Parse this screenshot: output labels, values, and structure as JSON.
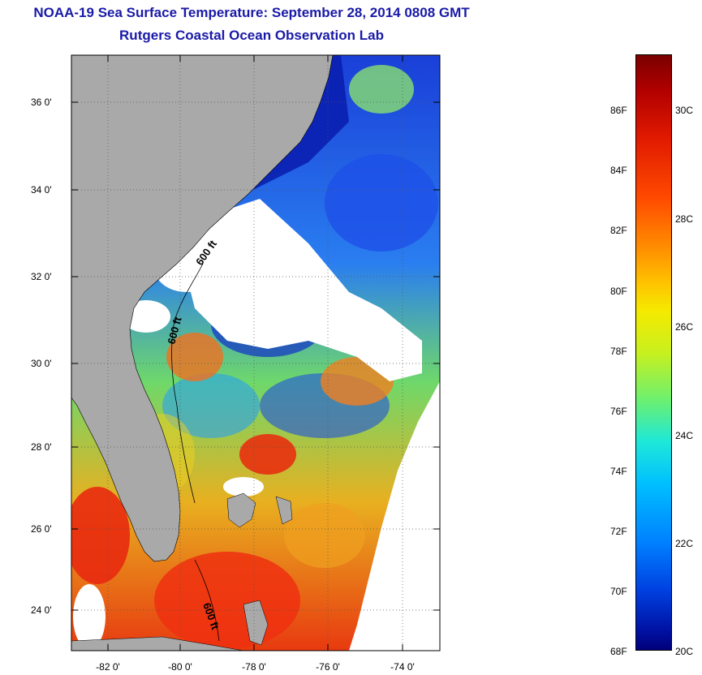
{
  "title": {
    "line1": "NOAA-19 Sea Surface Temperature:  September 28, 2014 0808 GMT",
    "line2": "Rutgers Coastal Ocean Observation Lab"
  },
  "map": {
    "lat_labels": [
      "36 0'",
      "34 0'",
      "32 0'",
      "30 0'",
      "28 0'",
      "26 0'",
      "24 0'"
    ],
    "lon_labels": [
      "-82 0'",
      "-80 0'",
      "-78 0'",
      "-76 0'",
      "-74 0'"
    ],
    "isobath_labels": [
      "600 ft",
      "600 ft",
      "600 ft"
    ],
    "land_color": "#a9a9a9",
    "cloud_color": "#ffffff"
  },
  "colorbar": {
    "fahrenheit_labels": [
      "86F",
      "84F",
      "82F",
      "80F",
      "78F",
      "76F",
      "74F",
      "72F",
      "70F",
      "68F"
    ],
    "celsius_labels": [
      "30C",
      "28C",
      "26C",
      "24C",
      "22C",
      "20C"
    ],
    "colors": [
      "#7a0000",
      "#e01a00",
      "#ff8a00",
      "#f5ea00",
      "#6cf070",
      "#1ee8d8",
      "#0080ff",
      "#00007a"
    ]
  }
}
